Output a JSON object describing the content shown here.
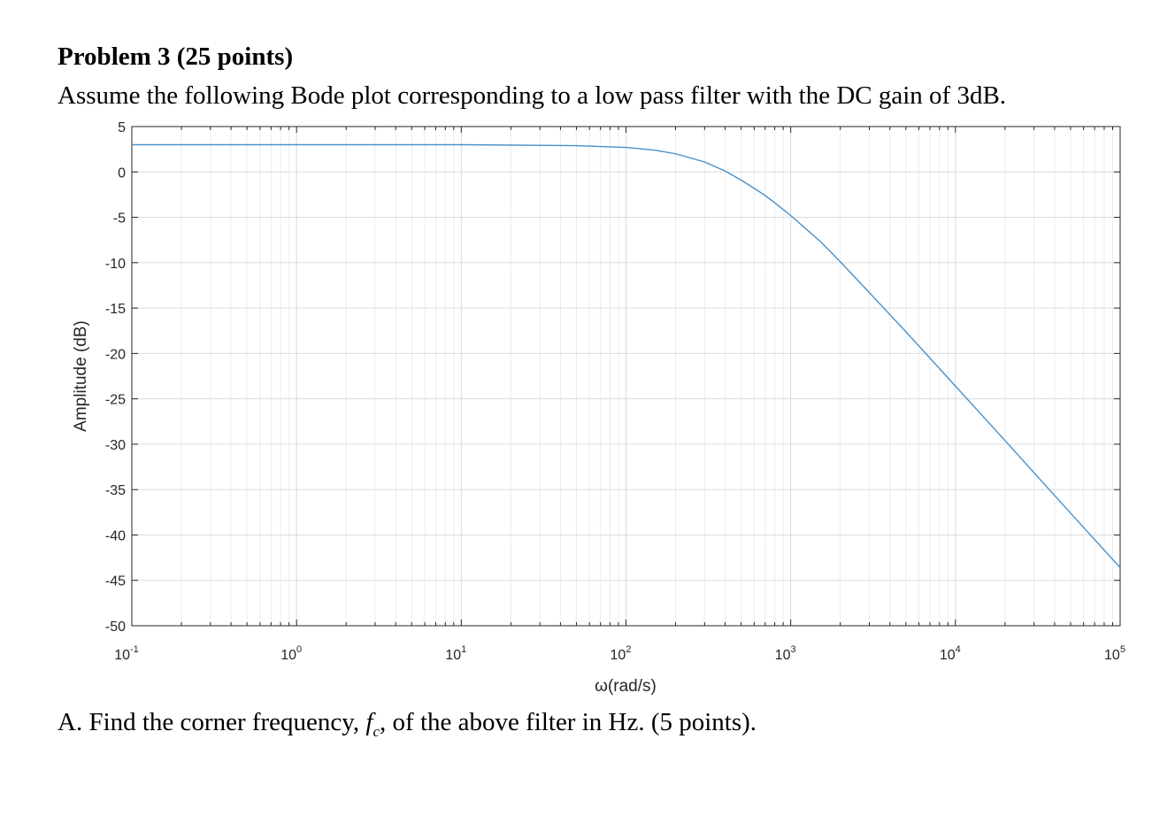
{
  "document": {
    "heading": "Problem 3 (25 points)",
    "intro": "Assume the following Bode plot corresponding to a low pass filter with the DC gain of 3dB.",
    "question": {
      "prefix": "A. Find the corner frequency, ",
      "var": "f",
      "sub": "c",
      "suffix": ", of the above filter in Hz. (5 points)."
    }
  },
  "chart_data": {
    "type": "line",
    "title": "",
    "xlabel": "ω(rad/s)",
    "ylabel": "Amplitude (dB)",
    "xscale": "log",
    "xlim": [
      0.1,
      100000
    ],
    "ylim": [
      -50,
      5
    ],
    "x_ticks": [
      {
        "base": "10",
        "exp": "-1"
      },
      {
        "base": "10",
        "exp": "0"
      },
      {
        "base": "10",
        "exp": "1"
      },
      {
        "base": "10",
        "exp": "2"
      },
      {
        "base": "10",
        "exp": "3"
      },
      {
        "base": "10",
        "exp": "4"
      },
      {
        "base": "10",
        "exp": "5"
      }
    ],
    "y_ticks": [
      5,
      0,
      -5,
      -10,
      -15,
      -20,
      -25,
      -30,
      -35,
      -40,
      -45,
      -50
    ],
    "grid": true,
    "line_color": "#4a90c8",
    "series": [
      {
        "x": [
          0.1,
          1,
          10,
          50,
          100,
          150,
          200,
          300,
          400,
          500,
          600,
          700,
          800,
          1000,
          1500,
          2000,
          3000,
          5000,
          10000,
          20000,
          50000,
          100000
        ],
        "y": [
          3.0,
          3.0,
          3.0,
          2.9,
          2.7,
          2.4,
          2.0,
          1.1,
          0.1,
          -0.9,
          -1.8,
          -2.6,
          -3.4,
          -4.8,
          -7.6,
          -9.9,
          -13.3,
          -17.6,
          -23.6,
          -29.6,
          -37.6,
          -43.6
        ]
      }
    ]
  }
}
